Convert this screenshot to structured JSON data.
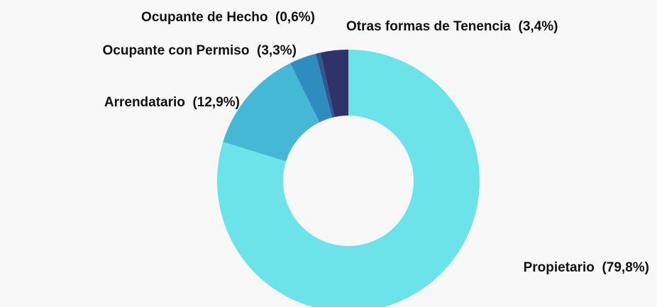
{
  "chart_data": {
    "type": "donut",
    "categories": [
      "Propietario",
      "Arrendatario",
      "Ocupante con Permiso",
      "Ocupante de Hecho",
      "Otras formas de Tenencia"
    ],
    "values": [
      79.8,
      12.9,
      3.3,
      0.6,
      3.4
    ],
    "value_labels": [
      "(79,8%)",
      "(12,9%)",
      "(3,3%)",
      "(0,6%)",
      "(3,4%)"
    ],
    "colors": [
      "#6be3e8",
      "#45b8d6",
      "#2e8cbf",
      "#2d5a8e",
      "#2f3369"
    ]
  }
}
